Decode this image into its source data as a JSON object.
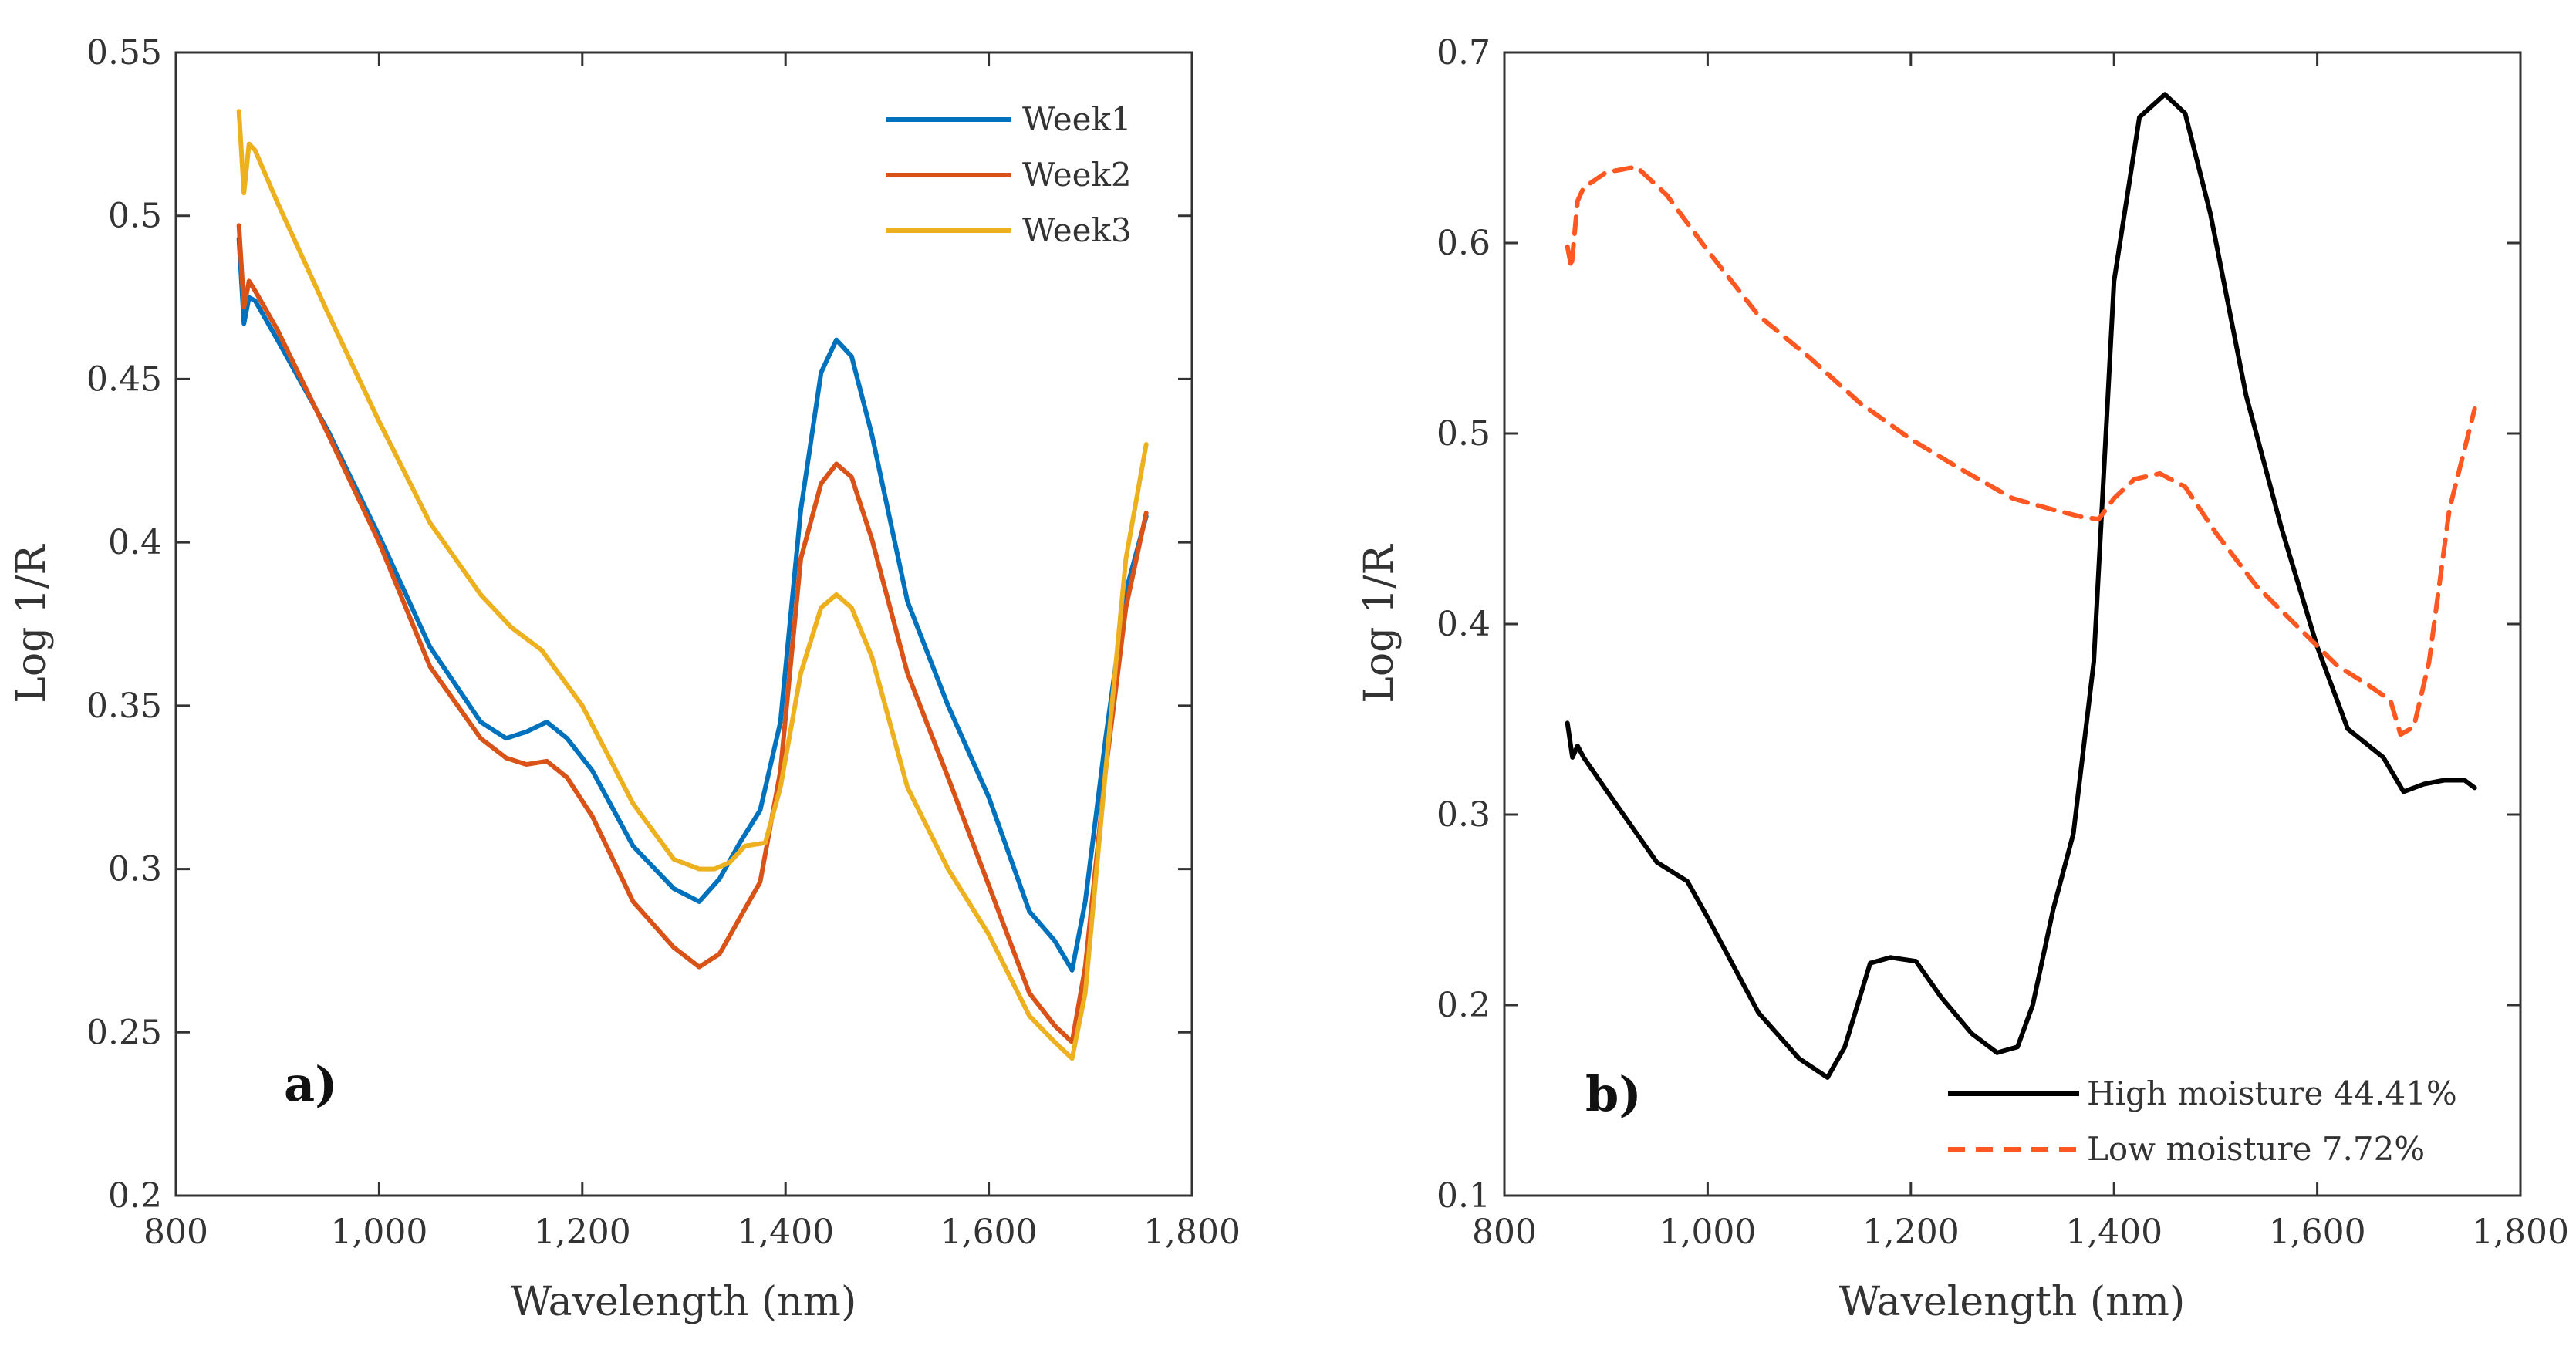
{
  "chart_data": [
    {
      "type": "line",
      "panel_label": "a)",
      "xlabel": "Wavelength (nm)",
      "ylabel": "Log 1/R",
      "xlim": [
        800,
        1800
      ],
      "ylim": [
        0.2,
        0.55
      ],
      "xticks": [
        800,
        1000,
        1200,
        1400,
        1600,
        1800
      ],
      "xtick_labels": [
        "800",
        "1,000",
        "1,200",
        "1,400",
        "1,600",
        "1,800"
      ],
      "yticks": [
        0.2,
        0.25,
        0.3,
        0.35,
        0.4,
        0.45,
        0.5,
        0.55
      ],
      "ytick_labels": [
        "0.2",
        "0.25",
        "0.3",
        "0.35",
        "0.4",
        "0.45",
        "0.5",
        "0.55"
      ],
      "grid": false,
      "legend_position": "top-right",
      "series": [
        {
          "name": "Week1",
          "color": "#0072BD",
          "dash": "solid",
          "x": [
            862,
            867,
            872,
            878,
            900,
            950,
            1000,
            1050,
            1100,
            1125,
            1145,
            1165,
            1185,
            1210,
            1250,
            1290,
            1315,
            1335,
            1355,
            1375,
            1395,
            1415,
            1435,
            1450,
            1465,
            1485,
            1520,
            1560,
            1600,
            1640,
            1665,
            1682,
            1695,
            1715,
            1735,
            1755
          ],
          "values": [
            0.493,
            0.467,
            0.475,
            0.474,
            0.462,
            0.434,
            0.402,
            0.368,
            0.345,
            0.34,
            0.342,
            0.345,
            0.34,
            0.33,
            0.307,
            0.294,
            0.29,
            0.297,
            0.308,
            0.318,
            0.345,
            0.41,
            0.452,
            0.462,
            0.457,
            0.433,
            0.382,
            0.35,
            0.322,
            0.287,
            0.278,
            0.269,
            0.29,
            0.34,
            0.385,
            0.408
          ]
        },
        {
          "name": "Week2",
          "color": "#D95319",
          "dash": "solid",
          "x": [
            862,
            867,
            872,
            878,
            900,
            950,
            1000,
            1050,
            1100,
            1125,
            1145,
            1165,
            1185,
            1210,
            1250,
            1290,
            1315,
            1335,
            1355,
            1375,
            1395,
            1415,
            1435,
            1450,
            1465,
            1485,
            1520,
            1560,
            1600,
            1640,
            1665,
            1682,
            1695,
            1715,
            1735,
            1755
          ],
          "values": [
            0.497,
            0.472,
            0.48,
            0.477,
            0.465,
            0.433,
            0.4,
            0.362,
            0.34,
            0.334,
            0.332,
            0.333,
            0.328,
            0.316,
            0.29,
            0.276,
            0.27,
            0.274,
            0.285,
            0.296,
            0.33,
            0.395,
            0.418,
            0.424,
            0.42,
            0.401,
            0.36,
            0.328,
            0.295,
            0.262,
            0.252,
            0.247,
            0.27,
            0.33,
            0.38,
            0.409
          ]
        },
        {
          "name": "Week3",
          "color": "#EDB120",
          "dash": "solid",
          "x": [
            862,
            867,
            872,
            878,
            900,
            950,
            1000,
            1050,
            1100,
            1130,
            1160,
            1200,
            1250,
            1290,
            1315,
            1330,
            1345,
            1360,
            1380,
            1395,
            1415,
            1435,
            1450,
            1465,
            1485,
            1520,
            1560,
            1600,
            1640,
            1665,
            1682,
            1695,
            1715,
            1735,
            1755
          ],
          "values": [
            0.532,
            0.507,
            0.522,
            0.52,
            0.504,
            0.47,
            0.437,
            0.406,
            0.384,
            0.374,
            0.367,
            0.35,
            0.32,
            0.303,
            0.3,
            0.3,
            0.302,
            0.307,
            0.308,
            0.325,
            0.36,
            0.38,
            0.384,
            0.38,
            0.365,
            0.325,
            0.3,
            0.28,
            0.255,
            0.247,
            0.242,
            0.262,
            0.33,
            0.395,
            0.43
          ]
        }
      ]
    },
    {
      "type": "line",
      "panel_label": "b)",
      "xlabel": "Wavelength (nm)",
      "ylabel": "Log 1/R",
      "xlim": [
        800,
        1800
      ],
      "ylim": [
        0.1,
        0.7
      ],
      "xticks": [
        800,
        1000,
        1200,
        1400,
        1600,
        1800
      ],
      "xtick_labels": [
        "800",
        "1,000",
        "1,200",
        "1,400",
        "1,600",
        "1,800"
      ],
      "yticks": [
        0.1,
        0.2,
        0.3,
        0.4,
        0.5,
        0.6,
        0.7
      ],
      "ytick_labels": [
        "0.1",
        "0.2",
        "0.3",
        "0.4",
        "0.5",
        "0.6",
        "0.7"
      ],
      "grid": false,
      "legend_position": "bottom-right",
      "series": [
        {
          "name": "High moisture 44.41%",
          "color": "#000000",
          "dash": "solid",
          "x": [
            862,
            867,
            872,
            878,
            900,
            950,
            980,
            1000,
            1050,
            1090,
            1118,
            1135,
            1160,
            1180,
            1205,
            1230,
            1260,
            1285,
            1305,
            1320,
            1340,
            1360,
            1380,
            1400,
            1425,
            1450,
            1470,
            1495,
            1530,
            1565,
            1600,
            1630,
            1665,
            1685,
            1705,
            1725,
            1745,
            1755
          ],
          "values": [
            0.348,
            0.33,
            0.336,
            0.33,
            0.313,
            0.275,
            0.265,
            0.246,
            0.196,
            0.172,
            0.162,
            0.178,
            0.222,
            0.225,
            0.223,
            0.204,
            0.185,
            0.175,
            0.178,
            0.2,
            0.25,
            0.29,
            0.38,
            0.58,
            0.666,
            0.678,
            0.668,
            0.615,
            0.52,
            0.45,
            0.388,
            0.345,
            0.33,
            0.312,
            0.316,
            0.318,
            0.318,
            0.314
          ]
        },
        {
          "name": "Low moisture 7.72%",
          "color": "#FF5722",
          "dash": "dashed",
          "x": [
            862,
            866,
            872,
            878,
            900,
            930,
            960,
            1000,
            1050,
            1100,
            1150,
            1200,
            1250,
            1300,
            1340,
            1370,
            1385,
            1400,
            1420,
            1445,
            1470,
            1500,
            1540,
            1580,
            1620,
            1650,
            1672,
            1682,
            1695,
            1710,
            1730,
            1755
          ],
          "values": [
            0.598,
            0.587,
            0.622,
            0.629,
            0.637,
            0.64,
            0.625,
            0.596,
            0.562,
            0.54,
            0.516,
            0.497,
            0.481,
            0.466,
            0.46,
            0.456,
            0.455,
            0.466,
            0.476,
            0.479,
            0.472,
            0.448,
            0.42,
            0.399,
            0.378,
            0.368,
            0.36,
            0.342,
            0.346,
            0.38,
            0.46,
            0.513
          ]
        }
      ]
    }
  ]
}
